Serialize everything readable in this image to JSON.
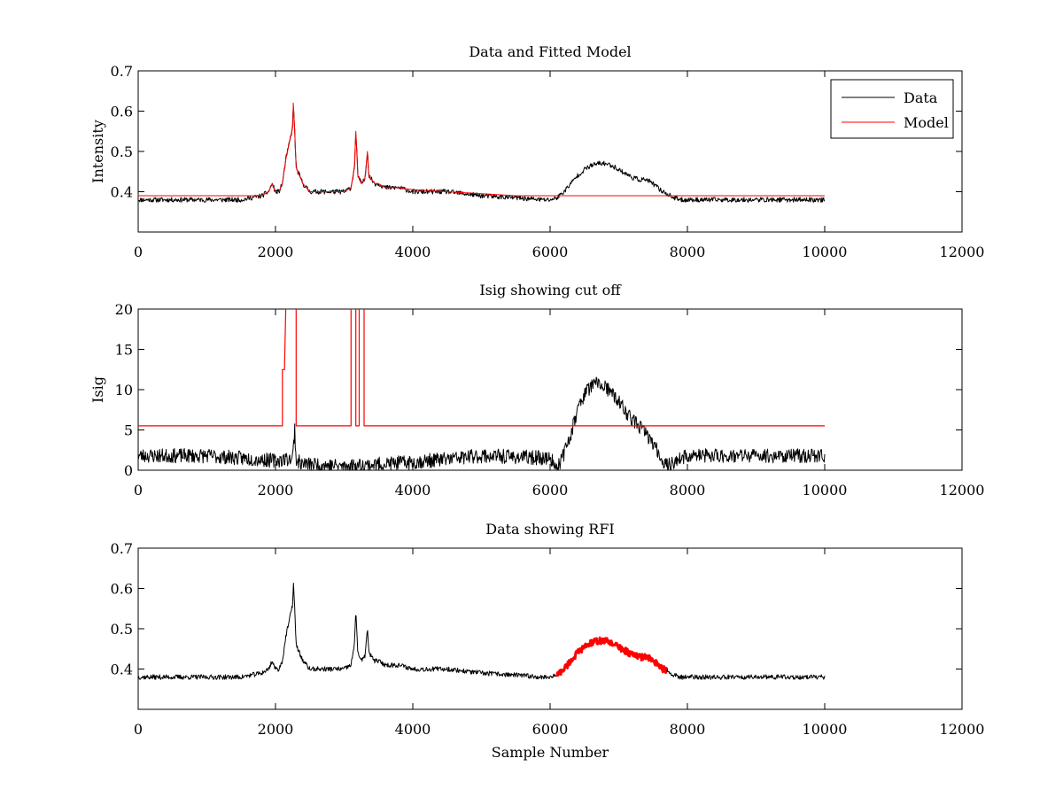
{
  "chart_data": [
    {
      "type": "line",
      "title": "Data and Fitted Model",
      "xlabel": "",
      "ylabel": "Intensity",
      "xlim": [
        0,
        12000
      ],
      "ylim": [
        0.3,
        0.7
      ],
      "xticks": [
        0,
        2000,
        4000,
        6000,
        8000,
        10000,
        12000
      ],
      "yticks": [
        0.4,
        0.5,
        0.6,
        0.7
      ],
      "grid": false,
      "legend_position": "top-right",
      "series": [
        {
          "name": "Data",
          "color": "#000000",
          "x": [
            0,
            1000,
            1500,
            1800,
            1900,
            1950,
            2000,
            2050,
            2100,
            2150,
            2200,
            2250,
            2260,
            2280,
            2300,
            2350,
            2400,
            2500,
            2700,
            2900,
            3000,
            3100,
            3150,
            3170,
            3200,
            3250,
            3300,
            3340,
            3360,
            3400,
            3450,
            3500,
            3600,
            3800,
            4000,
            4500,
            5000,
            5500,
            5900,
            6000,
            6100,
            6200,
            6300,
            6400,
            6500,
            6600,
            6700,
            6800,
            6900,
            7000,
            7100,
            7200,
            7300,
            7400,
            7500,
            7600,
            7700,
            7800,
            7900,
            8000,
            9000,
            10000
          ],
          "y": [
            0.38,
            0.38,
            0.38,
            0.39,
            0.4,
            0.42,
            0.4,
            0.4,
            0.42,
            0.48,
            0.52,
            0.56,
            0.62,
            0.55,
            0.46,
            0.44,
            0.42,
            0.4,
            0.4,
            0.4,
            0.4,
            0.41,
            0.46,
            0.55,
            0.44,
            0.42,
            0.43,
            0.5,
            0.44,
            0.43,
            0.42,
            0.42,
            0.41,
            0.41,
            0.4,
            0.4,
            0.39,
            0.385,
            0.38,
            0.38,
            0.385,
            0.4,
            0.42,
            0.44,
            0.455,
            0.465,
            0.47,
            0.47,
            0.465,
            0.455,
            0.445,
            0.435,
            0.43,
            0.43,
            0.42,
            0.405,
            0.395,
            0.385,
            0.38,
            0.38,
            0.38,
            0.38
          ]
        },
        {
          "name": "Model",
          "color": "#ff0000",
          "x": [
            0,
            1800,
            1900,
            1950,
            2000,
            2050,
            2100,
            2150,
            2200,
            2250,
            2260,
            2280,
            2300,
            2350,
            2400,
            2500,
            2700,
            2900,
            3000,
            3100,
            3150,
            3170,
            3200,
            3250,
            3300,
            3340,
            3360,
            3400,
            3450,
            3500,
            3600,
            3800,
            4000,
            4500,
            5000,
            5500,
            6000,
            10000
          ],
          "y": [
            0.39,
            0.39,
            0.4,
            0.42,
            0.4,
            0.4,
            0.42,
            0.48,
            0.52,
            0.56,
            0.62,
            0.55,
            0.46,
            0.44,
            0.42,
            0.4,
            0.4,
            0.4,
            0.4,
            0.41,
            0.46,
            0.55,
            0.44,
            0.42,
            0.43,
            0.5,
            0.44,
            0.43,
            0.42,
            0.42,
            0.41,
            0.41,
            0.405,
            0.4,
            0.395,
            0.39,
            0.39,
            0.39
          ]
        }
      ]
    },
    {
      "type": "line",
      "title": "Isig showing cut off",
      "xlabel": "",
      "ylabel": "Isig",
      "xlim": [
        0,
        12000
      ],
      "ylim": [
        0,
        20
      ],
      "xticks": [
        0,
        2000,
        4000,
        6000,
        8000,
        10000,
        12000
      ],
      "yticks": [
        0,
        5,
        10,
        15,
        20
      ],
      "grid": false,
      "series": [
        {
          "color": "#000000",
          "x": [
            0,
            1000,
            2000,
            2250,
            2280,
            2300,
            2400,
            3000,
            4000,
            5000,
            6000,
            6100,
            6200,
            6300,
            6400,
            6500,
            6600,
            6700,
            6800,
            6900,
            7000,
            7100,
            7200,
            7300,
            7400,
            7500,
            7600,
            7700,
            7800,
            8000,
            9000,
            10000
          ],
          "y": [
            1.8,
            1.8,
            1.2,
            1.5,
            5.2,
            1.2,
            0.8,
            0.5,
            1.0,
            1.8,
            1.5,
            0.3,
            2.0,
            4.5,
            7.5,
            9.5,
            10.5,
            10.8,
            10.3,
            9.5,
            8.5,
            7.3,
            6.2,
            5.5,
            4.5,
            3.3,
            1.8,
            0.5,
            1.0,
            1.8,
            1.8,
            1.8
          ]
        },
        {
          "color": "#ff0000",
          "x": [
            0,
            2100,
            2100,
            2130,
            2150,
            2150,
            2290,
            2290,
            2300,
            2300,
            3100,
            3100,
            3170,
            3170,
            3220,
            3220,
            3290,
            3290,
            3340,
            3340,
            10000
          ],
          "y": [
            5.5,
            5.5,
            12.5,
            12.5,
            20,
            20,
            20,
            20,
            20,
            5.5,
            5.5,
            20,
            20,
            5.5,
            5.5,
            20,
            20,
            5.5,
            5.5,
            5.5,
            5.5
          ]
        }
      ]
    },
    {
      "type": "line",
      "title": "Data showing RFI",
      "xlabel": "Sample Number",
      "ylabel": "",
      "xlim": [
        0,
        12000
      ],
      "ylim": [
        0.3,
        0.7
      ],
      "xticks": [
        0,
        2000,
        4000,
        6000,
        8000,
        10000,
        12000
      ],
      "yticks": [
        0.4,
        0.5,
        0.6,
        0.7
      ],
      "grid": false,
      "series": [
        {
          "color": "#000000",
          "x": [
            0,
            1000,
            1500,
            1800,
            1900,
            1950,
            2000,
            2050,
            2100,
            2150,
            2200,
            2250,
            2260,
            2280,
            2300,
            2350,
            2400,
            2500,
            2700,
            2900,
            3000,
            3100,
            3150,
            3170,
            3200,
            3250,
            3300,
            3340,
            3360,
            3400,
            3450,
            3500,
            3600,
            3800,
            4000,
            4500,
            5000,
            5500,
            5900,
            6000,
            6100
          ],
          "y": [
            0.38,
            0.38,
            0.38,
            0.39,
            0.4,
            0.42,
            0.4,
            0.4,
            0.42,
            0.48,
            0.52,
            0.56,
            0.62,
            0.55,
            0.46,
            0.44,
            0.42,
            0.4,
            0.4,
            0.4,
            0.4,
            0.41,
            0.46,
            0.55,
            0.44,
            0.42,
            0.43,
            0.5,
            0.44,
            0.43,
            0.42,
            0.42,
            0.41,
            0.41,
            0.4,
            0.4,
            0.39,
            0.385,
            0.38,
            0.38,
            0.385
          ]
        },
        {
          "color": "#ff0000",
          "x": [
            6100,
            6200,
            6300,
            6400,
            6500,
            6600,
            6700,
            6800,
            6900,
            7000,
            7100,
            7200,
            7300,
            7400,
            7500,
            7600,
            7700
          ],
          "y": [
            0.385,
            0.4,
            0.42,
            0.44,
            0.455,
            0.465,
            0.47,
            0.47,
            0.465,
            0.455,
            0.445,
            0.435,
            0.43,
            0.43,
            0.42,
            0.405,
            0.395
          ]
        },
        {
          "color": "#000000",
          "x": [
            7700,
            7800,
            7900,
            8000,
            9000,
            10000
          ],
          "y": [
            0.395,
            0.385,
            0.38,
            0.38,
            0.38,
            0.38
          ]
        }
      ]
    }
  ]
}
